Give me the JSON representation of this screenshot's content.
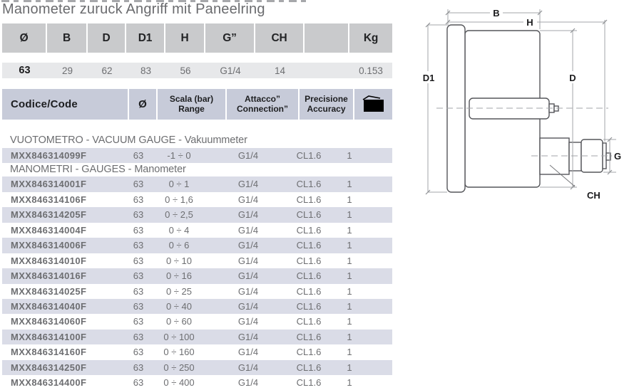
{
  "page": {
    "title": "Manometer zuruck Angriff mit Paneelring"
  },
  "dimensions_table": {
    "headers": [
      "Ø",
      "B",
      "D",
      "D1",
      "H",
      "G”",
      "CH",
      "",
      "Kg"
    ],
    "values": [
      "63",
      "29",
      "62",
      "83",
      "56",
      "G1/4",
      "14",
      "",
      "0.153"
    ]
  },
  "products_table": {
    "header": {
      "code": "Codice/Code",
      "dia": "Ø",
      "scala_l1": "Scala (bar)",
      "scala_l2": "Range",
      "att_l1": "Attacco”",
      "att_l2": "Connection”",
      "prec_l1": "Precisione",
      "prec_l2": "Accuracy",
      "qty_icon": "package-icon"
    },
    "rows": [
      {
        "type": "section",
        "label": "VUOTOMETRO - VACUUM GAUGE - Vakuummeter"
      },
      {
        "type": "item",
        "shaded": true,
        "code": "MXX846314099F",
        "dia": "63",
        "range": "-1 ÷ 0",
        "conn": "G1/4",
        "acc": "CL1.6",
        "qty": "1"
      },
      {
        "type": "section",
        "label": "MANOMETRI - GAUGES - Manometer"
      },
      {
        "type": "item",
        "shaded": true,
        "code": "MXX846314001F",
        "dia": "63",
        "range": "0 ÷ 1",
        "conn": "G1/4",
        "acc": "CL1.6",
        "qty": "1"
      },
      {
        "type": "item",
        "shaded": false,
        "code": "MXX846314106F",
        "dia": "63",
        "range": "0 ÷ 1,6",
        "conn": "G1/4",
        "acc": "CL1.6",
        "qty": "1"
      },
      {
        "type": "item",
        "shaded": true,
        "code": "MXX846314205F",
        "dia": "63",
        "range": "0 ÷ 2,5",
        "conn": "G1/4",
        "acc": "CL1.6",
        "qty": "1"
      },
      {
        "type": "item",
        "shaded": false,
        "code": "MXX846314004F",
        "dia": "63",
        "range": "0 ÷ 4",
        "conn": "G1/4",
        "acc": "CL1.6",
        "qty": "1"
      },
      {
        "type": "item",
        "shaded": true,
        "code": "MXX846314006F",
        "dia": "63",
        "range": "0 ÷ 6",
        "conn": "G1/4",
        "acc": "CL1.6",
        "qty": "1"
      },
      {
        "type": "item",
        "shaded": false,
        "code": "MXX846314010F",
        "dia": "63",
        "range": "0 ÷ 10",
        "conn": "G1/4",
        "acc": "CL1.6",
        "qty": "1"
      },
      {
        "type": "item",
        "shaded": true,
        "code": "MXX846314016F",
        "dia": "63",
        "range": "0 ÷ 16",
        "conn": "G1/4",
        "acc": "CL1.6",
        "qty": "1"
      },
      {
        "type": "item",
        "shaded": false,
        "code": "MXX846314025F",
        "dia": "63",
        "range": "0 ÷ 25",
        "conn": "G1/4",
        "acc": "CL1.6",
        "qty": "1"
      },
      {
        "type": "item",
        "shaded": true,
        "code": "MXX846314040F",
        "dia": "63",
        "range": "0 ÷ 40",
        "conn": "G1/4",
        "acc": "CL1.6",
        "qty": "1"
      },
      {
        "type": "item",
        "shaded": false,
        "code": "MXX846314060F",
        "dia": "63",
        "range": "0 ÷ 60",
        "conn": "G1/4",
        "acc": "CL1.6",
        "qty": "1"
      },
      {
        "type": "item",
        "shaded": true,
        "code": "MXX846314100F",
        "dia": "63",
        "range": "0 ÷ 100",
        "conn": "G1/4",
        "acc": "CL1.6",
        "qty": "1"
      },
      {
        "type": "item",
        "shaded": false,
        "code": "MXX846314160F",
        "dia": "63",
        "range": "0 ÷ 160",
        "conn": "G1/4",
        "acc": "CL1.6",
        "qty": "1"
      },
      {
        "type": "item",
        "shaded": true,
        "code": "MXX846314250F",
        "dia": "63",
        "range": "0 ÷ 250",
        "conn": "G1/4",
        "acc": "CL1.6",
        "qty": "1"
      },
      {
        "type": "item",
        "shaded": false,
        "code": "MXX846314400F",
        "dia": "63",
        "range": "0 ÷ 400",
        "conn": "G1/4",
        "acc": "CL1.6",
        "qty": "1"
      }
    ]
  },
  "drawing": {
    "labels": {
      "b": "B",
      "h": "H",
      "d1": "D1",
      "d": "D",
      "g": "G",
      "ch": "CH"
    }
  },
  "colors": {
    "dim_header_bg": "#c9cacc",
    "dim_values_bg": "#e7e8ea",
    "prod_header_bg": "#c7cbd9",
    "row_shade_bg": "#dadce7",
    "text_gray": "#6d6e71",
    "text_dark": "#1b1b1d"
  }
}
